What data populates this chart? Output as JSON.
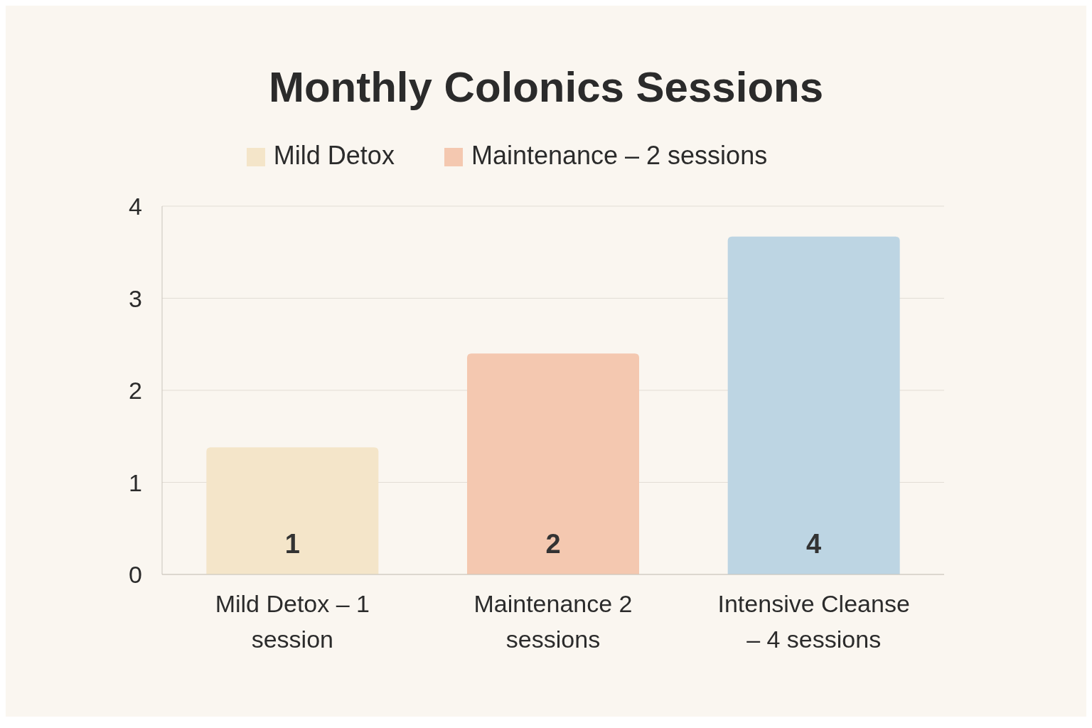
{
  "chart_data": {
    "type": "bar",
    "title": "Monthly Colonics Sessions",
    "categories": [
      "Mild Detox – 1 session",
      "Maintenance 2 sessions",
      "Intensive Cleanse – 4 sessions"
    ],
    "stacked": true,
    "series": [
      {
        "name": "Mild Detox",
        "color": "#f4e5c9",
        "values": [
          1.38,
          null,
          null
        ],
        "value_labels": [
          "1",
          null,
          null
        ]
      },
      {
        "name": "Maintenance – 2 sessions",
        "color": "#f4c8b0",
        "values": [
          null,
          2.4,
          null
        ],
        "value_labels": [
          null,
          "2",
          null
        ]
      },
      {
        "color": "#bdd5e3",
        "values": [
          null,
          null,
          3.67
        ],
        "value_labels": [
          null,
          null,
          "4"
        ]
      }
    ],
    "ylim": [
      0,
      4
    ],
    "yticks": [
      0,
      1,
      2,
      3,
      4
    ],
    "grid": "y",
    "legend": "top"
  }
}
